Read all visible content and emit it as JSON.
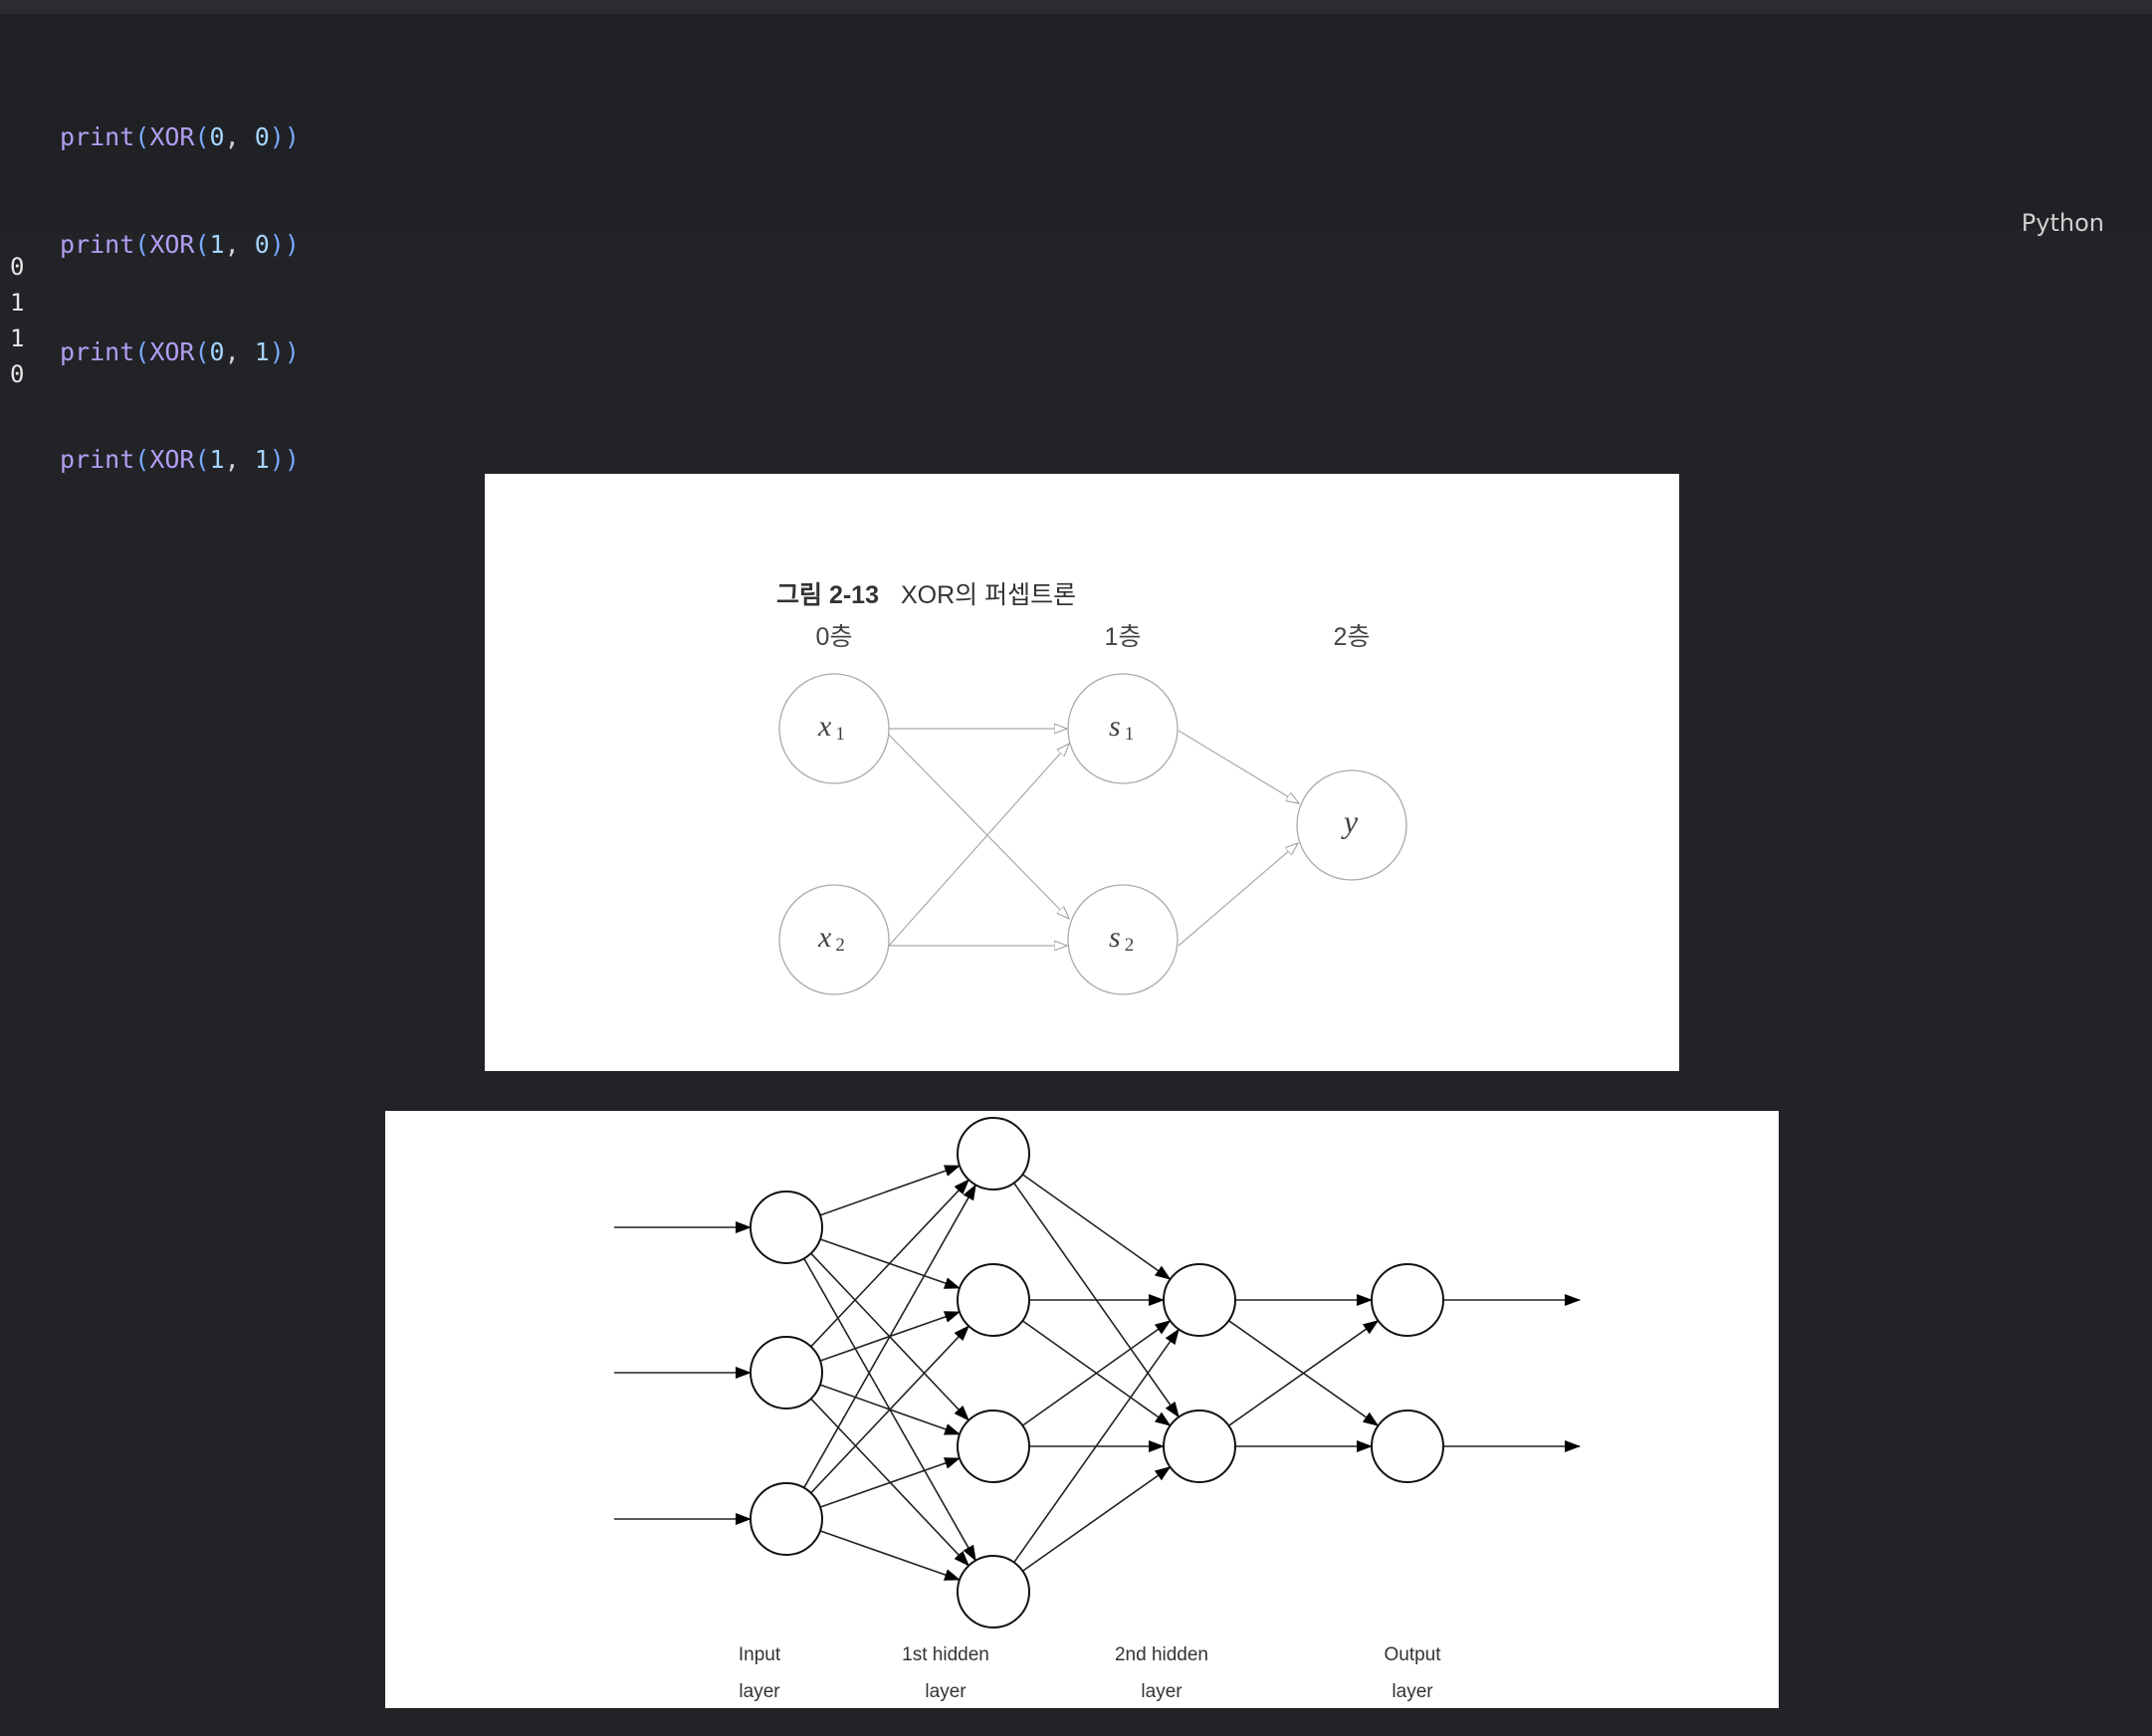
{
  "code": {
    "language_label": "Python",
    "lines": [
      {
        "fn": "print",
        "inner": "XOR",
        "a": "0",
        "b": "0"
      },
      {
        "fn": "print",
        "inner": "XOR",
        "a": "1",
        "b": "0"
      },
      {
        "fn": "print",
        "inner": "XOR",
        "a": "0",
        "b": "1"
      },
      {
        "fn": "print",
        "inner": "XOR",
        "a": "1",
        "b": "1"
      }
    ]
  },
  "output": {
    "lines": [
      "0",
      "1",
      "1",
      "0"
    ]
  },
  "figure1": {
    "caption_label": "그림 2-13",
    "caption_text": "XOR의 퍼셉트론",
    "layers": [
      "0층",
      "1층",
      "2층"
    ],
    "nodes": {
      "x1": {
        "base": "x",
        "sub": "1"
      },
      "x2": {
        "base": "x",
        "sub": "2"
      },
      "s1": {
        "base": "s",
        "sub": "1"
      },
      "s2": {
        "base": "s",
        "sub": "2"
      },
      "y": {
        "base": "y",
        "sub": ""
      }
    }
  },
  "figure2": {
    "layer_labels": [
      {
        "line1": "Input",
        "line2": "layer"
      },
      {
        "line1": "1st hidden",
        "line2": "layer"
      },
      {
        "line1": "2nd hidden",
        "line2": "layer"
      },
      {
        "line1": "Output",
        "line2": "layer"
      }
    ]
  }
}
